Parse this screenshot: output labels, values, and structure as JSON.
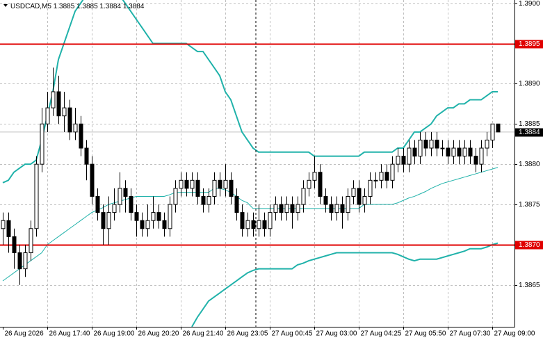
{
  "chart_data": {
    "type": "candlestick",
    "title": "USDCAD,M5",
    "header_values": [
      1.3885,
      1.3885,
      1.3884,
      1.3884
    ],
    "categories": [
      "26 Aug 2026",
      null,
      null,
      null,
      null,
      null,
      null,
      null,
      "26 Aug 17:40",
      null,
      null,
      null,
      null,
      null,
      null,
      null,
      "26 Aug 19:00",
      null,
      null,
      null,
      null,
      null,
      null,
      null,
      "26 Aug 20:20",
      null,
      null,
      null,
      null,
      null,
      null,
      null,
      "26 Aug 21:40",
      null,
      null,
      null,
      null,
      null,
      null,
      null,
      "26 Aug 23:05",
      null,
      null,
      null,
      null,
      null,
      null,
      null,
      "27 Aug 00:45",
      null,
      null,
      null,
      null,
      null,
      null,
      null,
      "27 Aug 03:00",
      null,
      null,
      null,
      null,
      null,
      null,
      null,
      "27 Aug 04:25",
      null,
      null,
      null,
      null,
      null,
      null,
      null,
      "27 Aug 05:50",
      null,
      null,
      null,
      null,
      null,
      null,
      null,
      "27 Aug 07:30",
      null,
      null,
      null,
      null,
      null,
      null,
      null,
      "27 Aug 09:00",
      null
    ],
    "open": [
      1.3872,
      1.3873,
      1.3871,
      1.3869,
      1.3867,
      1.3869,
      1.3872,
      1.388,
      1.3885,
      1.3887,
      1.3889,
      1.3886,
      1.3887,
      1.3884,
      1.3885,
      1.3882,
      1.388,
      1.3876,
      1.3874,
      1.3872,
      1.3874,
      1.3875,
      1.3877,
      1.3876,
      1.3874,
      1.3873,
      1.3872,
      1.3873,
      1.3874,
      1.3873,
      1.3872,
      1.3875,
      1.3877,
      1.3878,
      1.3877,
      1.3878,
      1.3876,
      1.3875,
      1.3876,
      1.3878,
      1.3877,
      1.3878,
      1.3876,
      1.3874,
      1.3872,
      1.3873,
      1.3872,
      1.3873,
      1.3872,
      1.3874,
      1.3875,
      1.3874,
      1.3875,
      1.3874,
      1.3875,
      1.3877,
      1.3878,
      1.3879,
      1.3876,
      1.3875,
      1.3874,
      1.3875,
      1.3874,
      1.3876,
      1.3877,
      1.3875,
      1.3876,
      1.3878,
      1.3878,
      1.3879,
      1.3878,
      1.388,
      1.3881,
      1.388,
      1.3882,
      1.3881,
      1.3883,
      1.3882,
      1.3883,
      1.3882,
      1.3882,
      1.3881,
      1.3882,
      1.3881,
      1.3882,
      1.3881,
      1.388,
      1.3882,
      1.3883,
      1.3885
    ],
    "high": [
      1.3874,
      1.3874,
      1.3872,
      1.387,
      1.387,
      1.3873,
      1.3881,
      1.3887,
      1.3889,
      1.3892,
      1.3891,
      1.3889,
      1.3888,
      1.3887,
      1.3886,
      1.3883,
      1.3881,
      1.3877,
      1.3875,
      1.3876,
      1.3877,
      1.3879,
      1.3878,
      1.3877,
      1.3875,
      1.3874,
      1.3875,
      1.3876,
      1.3875,
      1.3874,
      1.3876,
      1.3878,
      1.3879,
      1.3879,
      1.3879,
      1.3879,
      1.3877,
      1.3877,
      1.3879,
      1.3879,
      1.388,
      1.3879,
      1.3877,
      1.3875,
      1.3874,
      1.3874,
      1.3875,
      1.3874,
      1.3875,
      1.3876,
      1.3876,
      1.3876,
      1.3876,
      1.3876,
      1.3878,
      1.3879,
      1.3881,
      1.388,
      1.3877,
      1.3876,
      1.3876,
      1.3876,
      1.3877,
      1.3878,
      1.3878,
      1.3877,
      1.3879,
      1.3879,
      1.388,
      1.388,
      1.3881,
      1.3882,
      1.3882,
      1.3883,
      1.3883,
      1.3884,
      1.3884,
      1.3884,
      1.3884,
      1.3883,
      1.3883,
      1.3883,
      1.3883,
      1.3883,
      1.3883,
      1.3882,
      1.3883,
      1.3884,
      1.3885,
      1.3885
    ],
    "low": [
      1.387,
      1.3869,
      1.3867,
      1.3865,
      1.3866,
      1.3868,
      1.3871,
      1.3879,
      1.3884,
      1.3886,
      1.3885,
      1.3884,
      1.3883,
      1.3883,
      1.3881,
      1.3878,
      1.3875,
      1.3873,
      1.387,
      1.387,
      1.3873,
      1.3874,
      1.3874,
      1.3873,
      1.3871,
      1.3871,
      1.3871,
      1.3872,
      1.3872,
      1.3871,
      1.3871,
      1.3874,
      1.3876,
      1.3876,
      1.3876,
      1.3875,
      1.3874,
      1.3874,
      1.3875,
      1.3876,
      1.3876,
      1.3875,
      1.3873,
      1.3871,
      1.3871,
      1.3871,
      1.3871,
      1.3871,
      1.3871,
      1.3873,
      1.3873,
      1.3873,
      1.3872,
      1.3873,
      1.3874,
      1.3876,
      1.3877,
      1.3875,
      1.3874,
      1.3873,
      1.3873,
      1.3872,
      1.3873,
      1.3875,
      1.3874,
      1.3874,
      1.3875,
      1.3877,
      1.3877,
      1.3877,
      1.3877,
      1.3879,
      1.3879,
      1.3879,
      1.388,
      1.388,
      1.3881,
      1.3881,
      1.3881,
      1.3881,
      1.388,
      1.388,
      1.388,
      1.388,
      1.388,
      1.3879,
      1.3879,
      1.3881,
      1.3882,
      1.3884
    ],
    "close": [
      1.3873,
      1.3871,
      1.3869,
      1.3867,
      1.3869,
      1.3872,
      1.388,
      1.3885,
      1.3887,
      1.3889,
      1.3886,
      1.3887,
      1.3884,
      1.3885,
      1.3882,
      1.388,
      1.3876,
      1.3874,
      1.3872,
      1.3874,
      1.3875,
      1.3877,
      1.3876,
      1.3874,
      1.3873,
      1.3872,
      1.3873,
      1.3874,
      1.3873,
      1.3872,
      1.3875,
      1.3877,
      1.3878,
      1.3877,
      1.3878,
      1.3876,
      1.3875,
      1.3876,
      1.3878,
      1.3877,
      1.3878,
      1.3876,
      1.3874,
      1.3872,
      1.3873,
      1.3872,
      1.3873,
      1.3872,
      1.3874,
      1.3875,
      1.3874,
      1.3875,
      1.3874,
      1.3875,
      1.3877,
      1.3878,
      1.3879,
      1.3876,
      1.3875,
      1.3874,
      1.3875,
      1.3874,
      1.3876,
      1.3877,
      1.3875,
      1.3876,
      1.3878,
      1.3878,
      1.3879,
      1.3878,
      1.388,
      1.3881,
      1.388,
      1.3882,
      1.3881,
      1.3883,
      1.3882,
      1.3883,
      1.3882,
      1.3882,
      1.3881,
      1.3882,
      1.3881,
      1.3882,
      1.3881,
      1.388,
      1.3882,
      1.3883,
      1.3885,
      1.3884
    ],
    "overlays": [
      {
        "color": "#20b2aa",
        "values": [
          1.38777,
          1.3878,
          1.3879,
          1.38795,
          1.388,
          1.388,
          1.38805,
          1.3883,
          1.3886,
          1.3889,
          1.3893,
          1.3895,
          1.3897,
          1.3899,
          1.39,
          1.3901,
          1.3901,
          1.3901,
          1.3901,
          1.3901,
          1.3901,
          1.3901,
          1.39,
          1.3899,
          1.3898,
          1.3897,
          1.3896,
          1.3895,
          1.3895,
          1.3895,
          1.3895,
          1.3895,
          1.3895,
          1.3895,
          1.38945,
          1.3894,
          1.3894,
          1.3893,
          1.3892,
          1.3891,
          1.3889,
          1.3888,
          1.3886,
          1.3884,
          1.3883,
          1.3882,
          1.38815,
          1.38815,
          1.38815,
          1.38815,
          1.38815,
          1.38815,
          1.38815,
          1.38815,
          1.38815,
          1.38815,
          1.3881,
          1.3881,
          1.3881,
          1.3881,
          1.3881,
          1.3881,
          1.3881,
          1.3881,
          1.3881,
          1.38815,
          1.38815,
          1.38815,
          1.38815,
          1.38815,
          1.38815,
          1.3882,
          1.3882,
          1.3883,
          1.3884,
          1.3884,
          1.38845,
          1.3885,
          1.3886,
          1.38865,
          1.3887,
          1.3887,
          1.38875,
          1.38875,
          1.3888,
          1.3888,
          1.3888,
          1.38885,
          1.3889,
          1.3889
        ]
      },
      {
        "color": "#20b2aa",
        "values": [
          1.38655,
          1.3866,
          1.38665,
          1.3867,
          1.38675,
          1.3868,
          1.38685,
          1.3869,
          1.387,
          1.38705,
          1.3871,
          1.38715,
          1.3872,
          1.38725,
          1.3873,
          1.38735,
          1.3874,
          1.38743,
          1.38746,
          1.3875,
          1.38752,
          1.38754,
          1.38756,
          1.38758,
          1.3876,
          1.3876,
          1.3876,
          1.3876,
          1.3876,
          1.3876,
          1.38762,
          1.38765,
          1.38765,
          1.38765,
          1.38765,
          1.38765,
          1.38765,
          1.38765,
          1.3877,
          1.3877,
          1.38768,
          1.38765,
          1.3876,
          1.38755,
          1.38752,
          1.38745,
          1.38745,
          1.38745,
          1.38745,
          1.38745,
          1.38745,
          1.38745,
          1.38745,
          1.38745,
          1.38745,
          1.38745,
          1.38745,
          1.38745,
          1.38745,
          1.38745,
          1.38745,
          1.38745,
          1.38745,
          1.38745,
          1.38745,
          1.3875,
          1.3875,
          1.3875,
          1.3875,
          1.3875,
          1.3875,
          1.38752,
          1.38755,
          1.38758,
          1.3876,
          1.38763,
          1.38766,
          1.3877,
          1.38773,
          1.38776,
          1.38778,
          1.3878,
          1.38782,
          1.38784,
          1.38786,
          1.38788,
          1.3879,
          1.38792,
          1.38794,
          1.38796
        ]
      },
      {
        "color": "#20b2aa",
        "values": [
          null,
          null,
          null,
          null,
          null,
          null,
          null,
          null,
          null,
          null,
          null,
          null,
          null,
          null,
          null,
          null,
          null,
          null,
          null,
          null,
          null,
          null,
          null,
          null,
          null,
          null,
          null,
          null,
          null,
          null,
          null,
          null,
          null,
          null,
          1.38598,
          1.3861,
          1.3862,
          1.3863,
          1.38635,
          1.3864,
          1.38645,
          1.3865,
          1.38655,
          1.3866,
          1.38665,
          1.38668,
          1.3867,
          1.3867,
          1.3867,
          1.3867,
          1.3867,
          1.3867,
          1.3867,
          1.38675,
          1.38677,
          1.3868,
          1.38682,
          1.38684,
          1.38686,
          1.38688,
          1.3869,
          1.3869,
          1.3869,
          1.3869,
          1.3869,
          1.3869,
          1.3869,
          1.3869,
          1.3869,
          1.3869,
          1.3869,
          1.38688,
          1.38685,
          1.38682,
          1.3868,
          1.38682,
          1.38682,
          1.38682,
          1.38682,
          1.38684,
          1.38686,
          1.38688,
          1.3869,
          1.38692,
          1.38695,
          1.38695,
          1.38695,
          1.38697,
          1.387,
          1.38702
        ]
      }
    ],
    "hlines": [
      {
        "value": 1.3895,
        "color": "#e00000"
      },
      {
        "value": 1.387,
        "label": "1.3870",
        "color": "#e00000"
      }
    ],
    "current_price": 1.3884,
    "up_color": "#ffffff",
    "down_color": "#000000",
    "grid": true,
    "ylim": [
      1.38598,
      1.39004
    ],
    "yticks": [
      {
        "value": 1.39,
        "label": "1.3900"
      },
      1.3895,
      {
        "value": 1.389,
        "label": "1.3890"
      },
      1.3885,
      {
        "value": 1.388,
        "label": "1.3880"
      },
      1.3875,
      {
        "value": 1.387,
        "label": "1.3870"
      },
      1.3865
    ]
  }
}
